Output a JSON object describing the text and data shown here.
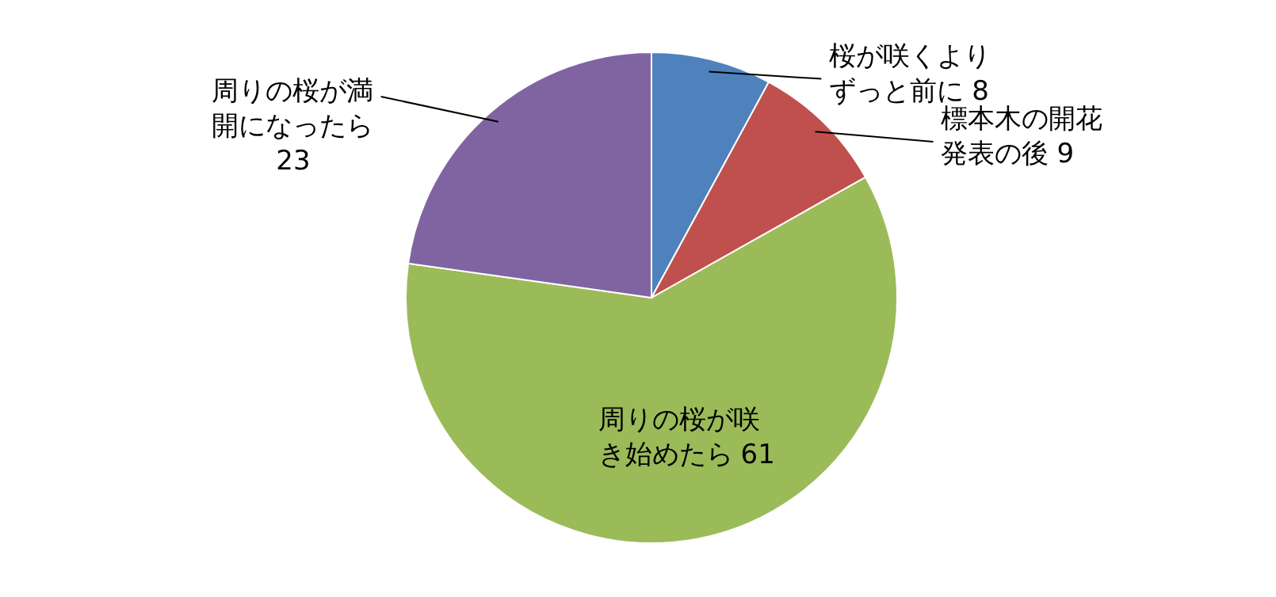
{
  "chart_data": {
    "type": "pie",
    "categories": [
      "桜が咲くよりずっと前に",
      "標本木の開花発表の後",
      "周りの桜が咲き始めたら",
      "周りの桜が満開になったら"
    ],
    "values": [
      8,
      9,
      61,
      23
    ],
    "colors": [
      "#4f81bd",
      "#c0504d",
      "#9bbb59",
      "#8064a2"
    ],
    "data_labels": true
  }
}
